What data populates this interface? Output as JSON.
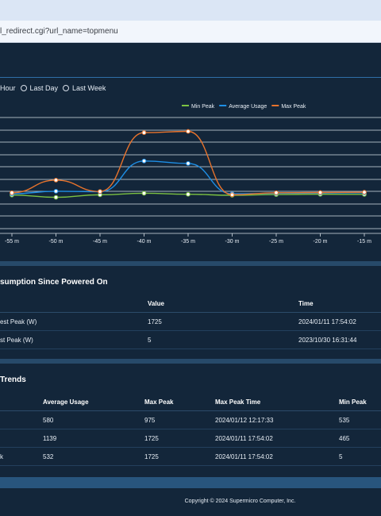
{
  "browser": {
    "url": "l_redirect.cgi?url_name=topmenu"
  },
  "range_selector": {
    "options": [
      {
        "label": "Hour",
        "selected": false
      },
      {
        "label": "Last Day",
        "selected": false
      },
      {
        "label": "Last Week",
        "selected": false
      }
    ]
  },
  "chart_data": {
    "type": "line",
    "x": [
      "-55 m",
      "-50 m",
      "-45 m",
      "-40 m",
      "-35 m",
      "-30 m",
      "-25 m",
      "-20 m",
      "-15 m"
    ],
    "series": [
      {
        "name": "Min Peak",
        "color": "#7cc242",
        "values": [
          465,
          420,
          470,
          500,
          480,
          460,
          475,
          480,
          478
        ]
      },
      {
        "name": "Average Usage",
        "color": "#1e8fe6",
        "values": [
          490,
          540,
          530,
          1139,
          1090,
          490,
          500,
          505,
          510
        ]
      },
      {
        "name": "Max Peak",
        "color": "#e8732c",
        "values": [
          510,
          760,
          535,
          1700,
          1725,
          470,
          510,
          515,
          520
        ]
      }
    ],
    "ylim": [
      -200,
      2000
    ],
    "grid": true,
    "legend": "top-right"
  },
  "consumption": {
    "title": "sumption Since Powered On",
    "columns": [
      "",
      "Value",
      "Time"
    ],
    "rows": [
      [
        "est Peak (W)",
        "1725",
        "2024/01/11 17:54:02"
      ],
      [
        "st Peak (W)",
        "5",
        "2023/10/30 16:31:44"
      ]
    ]
  },
  "trends": {
    "title": "Trends",
    "columns": [
      "",
      "Average Usage",
      "Max Peak",
      "Max Peak Time",
      "Min Peak"
    ],
    "rows": [
      [
        "",
        "580",
        "975",
        "2024/01/12 12:17:33",
        "535"
      ],
      [
        "",
        "1139",
        "1725",
        "2024/01/11 17:54:02",
        "465"
      ],
      [
        "k",
        "532",
        "1725",
        "2024/01/11 17:54:02",
        "5"
      ]
    ]
  },
  "footer": {
    "copyright": "Copyright © 2024 Supermicro Computer, Inc."
  }
}
